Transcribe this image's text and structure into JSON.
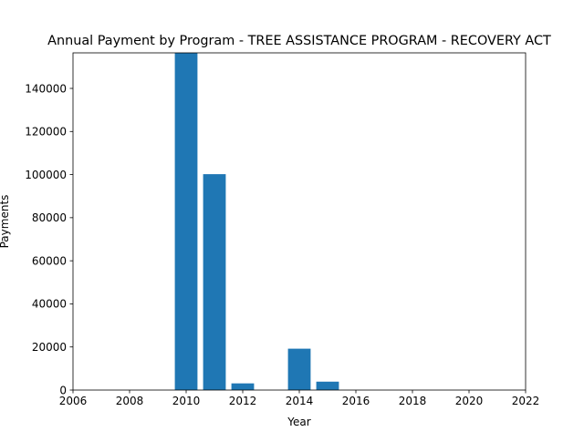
{
  "chart_data": {
    "type": "bar",
    "title": "Annual Payment by Program - TREE ASSISTANCE PROGRAM - RECOVERY ACT",
    "xlabel": "Year",
    "ylabel": "Payments",
    "x": [
      2010,
      2011,
      2012,
      2014,
      2015
    ],
    "values": [
      156500,
      100200,
      3100,
      19200,
      3900
    ],
    "xlim": [
      2006,
      2022
    ],
    "ylim": [
      0,
      156500
    ],
    "xticks": [
      2006,
      2008,
      2010,
      2012,
      2014,
      2016,
      2018,
      2020,
      2022
    ],
    "yticks": [
      0,
      20000,
      40000,
      60000,
      80000,
      100000,
      120000,
      140000
    ],
    "bar_color": "#1f77b4",
    "grid": false,
    "legend": "none"
  }
}
